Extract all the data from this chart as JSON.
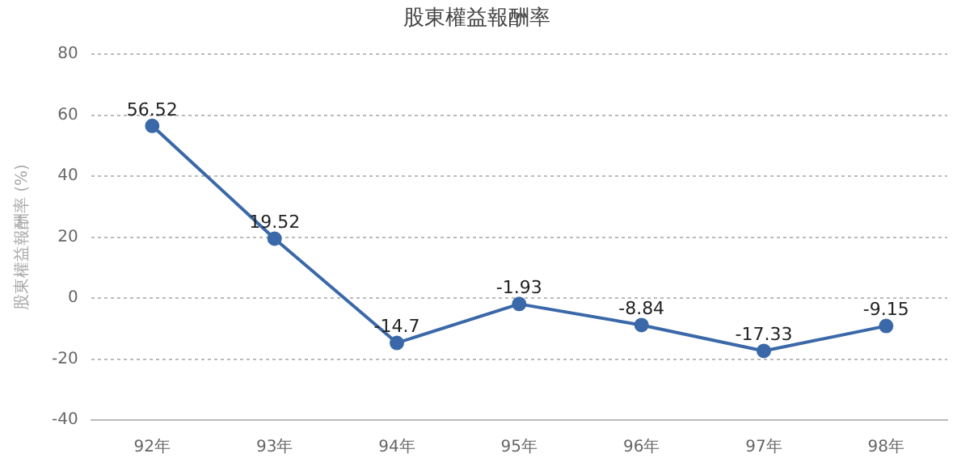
{
  "chart_data": {
    "type": "line",
    "title": "股東權益報酬率",
    "ylabel": "股東權益報酬率 (%)",
    "categories": [
      "92年",
      "93年",
      "94年",
      "95年",
      "96年",
      "97年",
      "98年"
    ],
    "series": [
      {
        "color": "#3a68a8",
        "values": [
          56.52,
          19.52,
          -14.7,
          -1.93,
          -8.84,
          -17.33,
          -9.15
        ]
      }
    ],
    "ylim": [
      -40,
      80
    ],
    "yticks": [
      -40,
      -20,
      0,
      20,
      40,
      60,
      80
    ],
    "grid": "y",
    "legend": false,
    "marker": "circle",
    "line_style": "solid",
    "data_labels": true
  }
}
